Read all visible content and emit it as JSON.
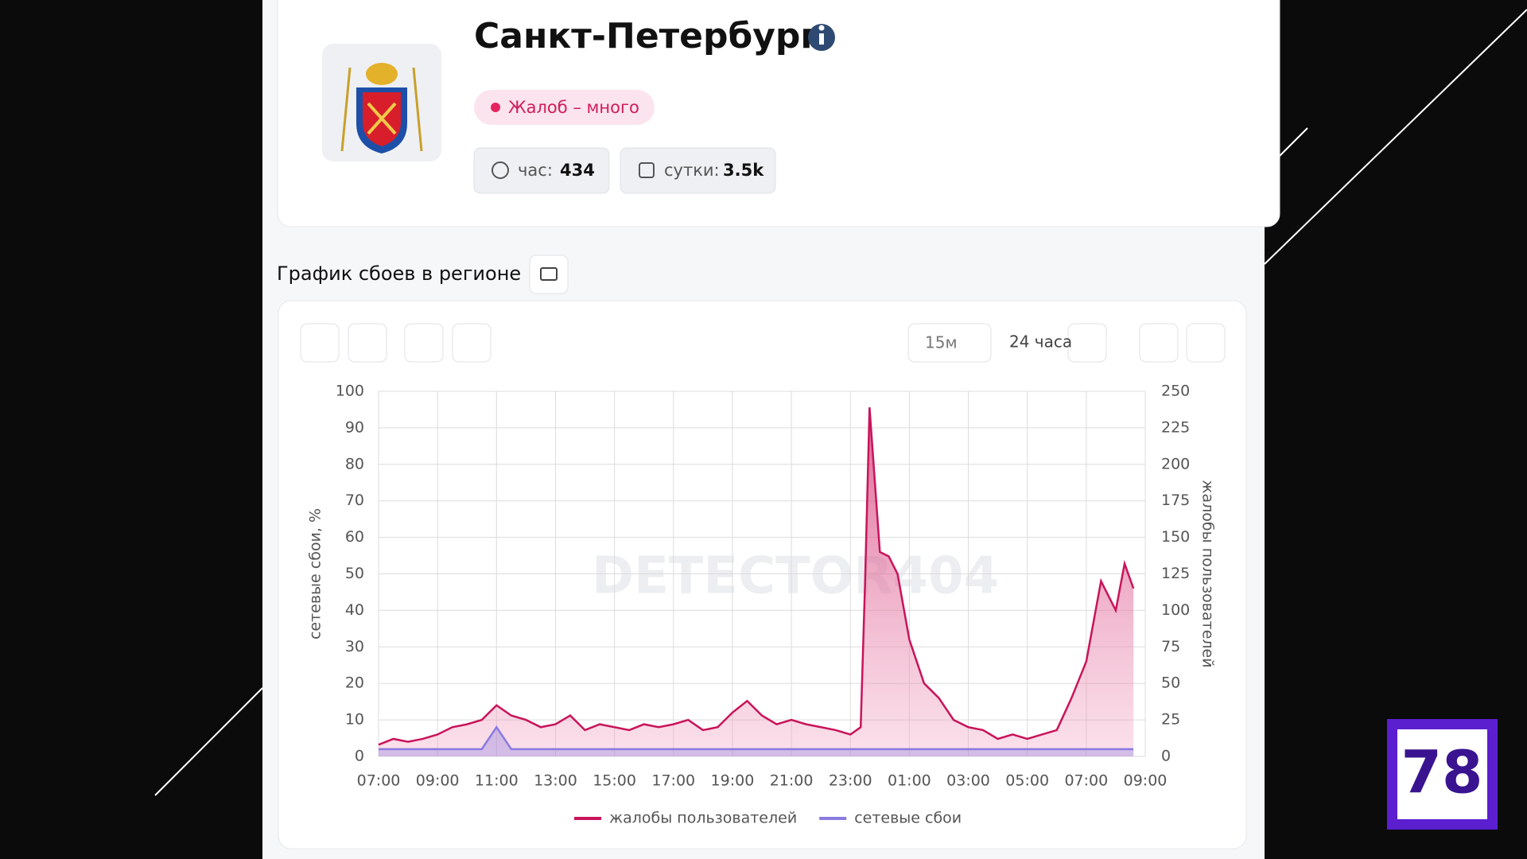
{
  "header": {
    "title": "Санкт-Петербург",
    "status": "Жалоб – много",
    "hour_label": "час:",
    "hour_value": "434",
    "day_label": "сутки:",
    "day_value": "3.5k"
  },
  "section_title": "График сбоев в регионе",
  "toolbar": {
    "interval": "15м",
    "range": "24 часа"
  },
  "watermark": "DETECTOR404",
  "logo": "78",
  "chart_data": {
    "type": "line",
    "x": [
      7,
      7.5,
      8,
      8.5,
      9,
      9.5,
      10,
      10.5,
      11,
      11.5,
      12,
      12.5,
      13,
      13.5,
      14,
      14.5,
      15,
      15.5,
      16,
      16.5,
      17,
      17.5,
      18,
      18.5,
      19,
      19.5,
      20,
      20.5,
      21,
      21.5,
      22,
      22.5,
      23,
      23.35,
      23.5,
      23.65,
      24,
      24.3,
      24.6,
      25,
      25.5,
      26,
      26.5,
      27,
      27.5,
      28,
      28.5,
      29,
      29.5,
      30,
      30.5,
      31,
      31.5,
      32,
      32.3,
      32.6
    ],
    "xlim": [
      7,
      33
    ],
    "xticks": [
      {
        "value": 7,
        "label": "07:00"
      },
      {
        "value": 9,
        "label": "09:00"
      },
      {
        "value": 11,
        "label": "11:00"
      },
      {
        "value": 13,
        "label": "13:00"
      },
      {
        "value": 15,
        "label": "15:00"
      },
      {
        "value": 17,
        "label": "17:00"
      },
      {
        "value": 19,
        "label": "19:00"
      },
      {
        "value": 21,
        "label": "21:00"
      },
      {
        "value": 23,
        "label": "23:00"
      },
      {
        "value": 25,
        "label": "01:00"
      },
      {
        "value": 27,
        "label": "03:00"
      },
      {
        "value": 29,
        "label": "05:00"
      },
      {
        "value": 31,
        "label": "07:00"
      },
      {
        "value": 33,
        "label": "09:00"
      }
    ],
    "ylim": [
      0,
      100
    ],
    "yticks": [
      0,
      10,
      20,
      30,
      40,
      50,
      60,
      70,
      80,
      90,
      100
    ],
    "y2lim": [
      0,
      250
    ],
    "y2ticks": [
      0,
      25,
      50,
      75,
      100,
      125,
      150,
      175,
      200,
      225,
      250
    ],
    "ylabel": "сетевые сбои, %",
    "y2label": "жалобы пользователей",
    "grid": true,
    "legend": "bottom",
    "series": [
      {
        "name": "жалобы пользователей",
        "color": "#c8145a",
        "axis": "y2",
        "values": [
          8,
          12,
          10,
          12,
          15,
          20,
          22,
          25,
          35,
          28,
          25,
          20,
          22,
          28,
          18,
          22,
          20,
          18,
          22,
          20,
          22,
          25,
          18,
          20,
          30,
          38,
          28,
          22,
          25,
          22,
          20,
          18,
          15,
          20,
          120,
          239,
          140,
          137,
          125,
          80,
          50,
          40,
          25,
          20,
          18,
          12,
          15,
          12,
          15,
          18,
          40,
          65,
          120,
          100,
          132,
          115
        ]
      },
      {
        "name": "сетевые сбои",
        "color": "#8a7be0",
        "values": [
          2,
          2,
          2,
          2,
          2,
          2,
          2,
          2,
          8,
          2,
          2,
          2,
          2,
          2,
          2,
          2,
          2,
          2,
          2,
          2,
          2,
          2,
          2,
          2,
          2,
          2,
          2,
          2,
          2,
          2,
          2,
          2,
          2,
          2,
          2,
          2,
          2,
          2,
          2,
          2,
          2,
          2,
          2,
          2,
          2,
          2,
          2,
          2,
          2,
          2,
          2,
          2,
          2,
          2,
          2,
          2
        ]
      }
    ]
  }
}
